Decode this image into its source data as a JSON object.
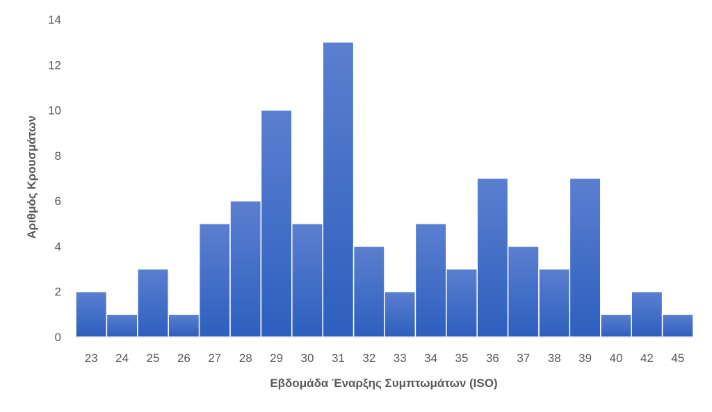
{
  "chart_data": {
    "type": "bar",
    "categories": [
      "23",
      "24",
      "25",
      "26",
      "27",
      "28",
      "29",
      "30",
      "31",
      "32",
      "33",
      "34",
      "35",
      "36",
      "37",
      "38",
      "39",
      "40",
      "42",
      "45"
    ],
    "values": [
      2,
      1,
      3,
      1,
      5,
      6,
      10,
      5,
      13,
      4,
      2,
      5,
      3,
      7,
      4,
      3,
      7,
      1,
      2,
      1
    ],
    "xlabel": "Εβδομάδα Έναρξης Συμπτωμάτων (ISO)",
    "ylabel": "Αριθμός Κρουσμάτων",
    "ylim": [
      0,
      14
    ],
    "yticks": [
      0,
      2,
      4,
      6,
      8,
      10,
      12,
      14
    ],
    "grid": false,
    "legend": "none",
    "bar_color_top": "#5b7fd0",
    "bar_color_bottom": "#2d5fbe",
    "bar_edge_color": "#ffffff",
    "axis_color": "#d9d9d9",
    "text_color": "#595959"
  }
}
